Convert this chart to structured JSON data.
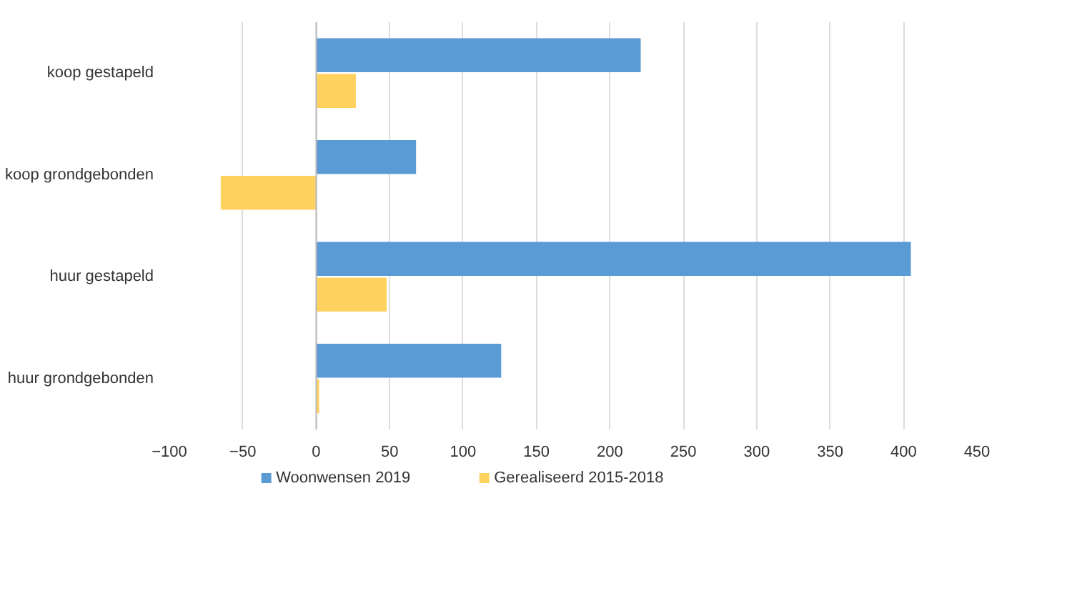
{
  "chart_data": {
    "type": "bar",
    "orientation": "horizontal",
    "categories": [
      "koop gestapeld",
      "koop grondgebonden",
      "huur gestapeld",
      "huur grondgebonden"
    ],
    "series": [
      {
        "name": "Woonwensen 2019",
        "color": "#5b9bd5",
        "values": [
          221,
          68,
          405,
          126
        ]
      },
      {
        "name": "Gerealiseerd 2015-2018",
        "color": "#ffd25f",
        "values": [
          27,
          -65,
          48,
          2
        ]
      }
    ],
    "xlim": [
      -100,
      450
    ],
    "xticks": [
      -100,
      -50,
      0,
      50,
      100,
      150,
      200,
      250,
      300,
      350,
      400,
      450
    ],
    "grid": "x",
    "legend": "bottom"
  }
}
